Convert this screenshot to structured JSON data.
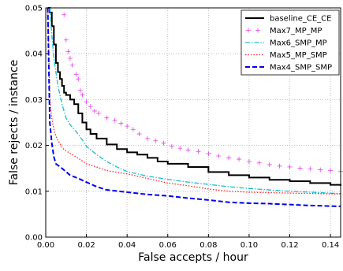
{
  "chart_data": {
    "type": "line",
    "title": "",
    "xlabel": "False accepts / hour",
    "ylabel": "False rejects / instance",
    "xlim": [
      0,
      0.145
    ],
    "ylim": [
      0,
      0.05
    ],
    "x_ticks": [
      0.0,
      0.02,
      0.04,
      0.06,
      0.08,
      0.1,
      0.12,
      0.14
    ],
    "x_tick_labels": [
      "0.00",
      "0.02",
      "0.04",
      "0.06",
      "0.08",
      "0.10",
      "0.12",
      "0.14"
    ],
    "y_ticks": [
      0.0,
      0.01,
      0.02,
      0.03,
      0.04,
      0.05
    ],
    "y_tick_labels": [
      "0.00",
      "0.01",
      "0.02",
      "0.03",
      "0.04",
      "0.05"
    ],
    "grid": true,
    "legend_position": "top-right",
    "series": [
      {
        "name": "baseline_CE_CE",
        "color": "#000000",
        "style": "solid",
        "points": [
          [
            0.001,
            0.05
          ],
          [
            0.002,
            0.049
          ],
          [
            0.003,
            0.046
          ],
          [
            0.004,
            0.042
          ],
          [
            0.005,
            0.038
          ],
          [
            0.006,
            0.036
          ],
          [
            0.007,
            0.0345
          ],
          [
            0.008,
            0.033
          ],
          [
            0.009,
            0.0315
          ],
          [
            0.01,
            0.031
          ],
          [
            0.012,
            0.03
          ],
          [
            0.014,
            0.029
          ],
          [
            0.016,
            0.027
          ],
          [
            0.018,
            0.025
          ],
          [
            0.02,
            0.0235
          ],
          [
            0.022,
            0.0225
          ],
          [
            0.025,
            0.0215
          ],
          [
            0.03,
            0.0202
          ],
          [
            0.035,
            0.0192
          ],
          [
            0.04,
            0.0185
          ],
          [
            0.045,
            0.018
          ],
          [
            0.05,
            0.0173
          ],
          [
            0.055,
            0.0165
          ],
          [
            0.06,
            0.016
          ],
          [
            0.07,
            0.0153
          ],
          [
            0.08,
            0.0142
          ],
          [
            0.09,
            0.0135
          ],
          [
            0.1,
            0.013
          ],
          [
            0.11,
            0.0125
          ],
          [
            0.12,
            0.0122
          ],
          [
            0.13,
            0.0118
          ],
          [
            0.14,
            0.0114
          ],
          [
            0.145,
            0.0112
          ]
        ]
      },
      {
        "name": "Max7_MP_MP",
        "color": "#e040e0",
        "style": "plus",
        "points": [
          [
            0.009,
            0.0485
          ],
          [
            0.01,
            0.043
          ],
          [
            0.011,
            0.0405
          ],
          [
            0.012,
            0.039
          ],
          [
            0.013,
            0.0375
          ],
          [
            0.015,
            0.0355
          ],
          [
            0.016,
            0.0345
          ],
          [
            0.017,
            0.032
          ],
          [
            0.018,
            0.031
          ],
          [
            0.02,
            0.0295
          ],
          [
            0.022,
            0.0285
          ],
          [
            0.024,
            0.0275
          ],
          [
            0.026,
            0.027
          ],
          [
            0.03,
            0.026
          ],
          [
            0.034,
            0.0255
          ],
          [
            0.037,
            0.0248
          ],
          [
            0.04,
            0.0242
          ],
          [
            0.043,
            0.0235
          ],
          [
            0.046,
            0.0225
          ],
          [
            0.05,
            0.0215
          ],
          [
            0.054,
            0.021
          ],
          [
            0.058,
            0.0205
          ],
          [
            0.062,
            0.0198
          ],
          [
            0.066,
            0.0194
          ],
          [
            0.07,
            0.019
          ],
          [
            0.075,
            0.0187
          ],
          [
            0.08,
            0.0182
          ],
          [
            0.085,
            0.0177
          ],
          [
            0.09,
            0.0173
          ],
          [
            0.095,
            0.017
          ],
          [
            0.1,
            0.0165
          ],
          [
            0.105,
            0.0162
          ],
          [
            0.11,
            0.0158
          ],
          [
            0.115,
            0.0155
          ],
          [
            0.12,
            0.0153
          ],
          [
            0.125,
            0.015
          ],
          [
            0.13,
            0.0149
          ],
          [
            0.135,
            0.0147
          ],
          [
            0.14,
            0.0145
          ],
          [
            0.145,
            0.0143
          ]
        ]
      },
      {
        "name": "Max6_SMP_MP",
        "color": "#17becf",
        "style": "dashdot",
        "points": [
          [
            0.002,
            0.05
          ],
          [
            0.003,
            0.044
          ],
          [
            0.004,
            0.039
          ],
          [
            0.005,
            0.036
          ],
          [
            0.006,
            0.033
          ],
          [
            0.007,
            0.031
          ],
          [
            0.008,
            0.029
          ],
          [
            0.009,
            0.0275
          ],
          [
            0.01,
            0.026
          ],
          [
            0.012,
            0.0245
          ],
          [
            0.015,
            0.023
          ],
          [
            0.018,
            0.0212
          ],
          [
            0.02,
            0.0198
          ],
          [
            0.025,
            0.018
          ],
          [
            0.03,
            0.0165
          ],
          [
            0.035,
            0.0153
          ],
          [
            0.04,
            0.0143
          ],
          [
            0.05,
            0.0133
          ],
          [
            0.06,
            0.0126
          ],
          [
            0.07,
            0.012
          ],
          [
            0.08,
            0.0115
          ],
          [
            0.09,
            0.011
          ],
          [
            0.1,
            0.0106
          ],
          [
            0.11,
            0.0103
          ],
          [
            0.12,
            0.01
          ],
          [
            0.13,
            0.0098
          ],
          [
            0.145,
            0.0095
          ]
        ]
      },
      {
        "name": "Max5_MP_SMP",
        "color": "#ff2222",
        "style": "dotted",
        "points": [
          [
            0.001,
            0.05
          ],
          [
            0.002,
            0.03
          ],
          [
            0.003,
            0.026
          ],
          [
            0.004,
            0.0235
          ],
          [
            0.005,
            0.022
          ],
          [
            0.006,
            0.021
          ],
          [
            0.007,
            0.0205
          ],
          [
            0.008,
            0.0195
          ],
          [
            0.01,
            0.0188
          ],
          [
            0.013,
            0.018
          ],
          [
            0.016,
            0.0172
          ],
          [
            0.02,
            0.016
          ],
          [
            0.025,
            0.0153
          ],
          [
            0.03,
            0.0145
          ],
          [
            0.04,
            0.0138
          ],
          [
            0.05,
            0.0128
          ],
          [
            0.06,
            0.0118
          ],
          [
            0.07,
            0.0112
          ],
          [
            0.08,
            0.0105
          ],
          [
            0.09,
            0.01
          ],
          [
            0.1,
            0.0098
          ],
          [
            0.12,
            0.0096
          ],
          [
            0.145,
            0.0094
          ]
        ]
      },
      {
        "name": "Max4_SMP_SMP",
        "color": "#0000ee",
        "style": "dashed",
        "points": [
          [
            0.001,
            0.05
          ],
          [
            0.002,
            0.025
          ],
          [
            0.003,
            0.0205
          ],
          [
            0.004,
            0.0175
          ],
          [
            0.005,
            0.016
          ],
          [
            0.008,
            0.015
          ],
          [
            0.012,
            0.0135
          ],
          [
            0.016,
            0.0128
          ],
          [
            0.02,
            0.012
          ],
          [
            0.025,
            0.011
          ],
          [
            0.03,
            0.0103
          ],
          [
            0.04,
            0.0098
          ],
          [
            0.05,
            0.0093
          ],
          [
            0.06,
            0.009
          ],
          [
            0.07,
            0.0085
          ],
          [
            0.08,
            0.0081
          ],
          [
            0.09,
            0.0076
          ],
          [
            0.1,
            0.0074
          ],
          [
            0.11,
            0.0073
          ],
          [
            0.12,
            0.0071
          ],
          [
            0.13,
            0.0069
          ],
          [
            0.145,
            0.0067
          ]
        ]
      }
    ]
  }
}
